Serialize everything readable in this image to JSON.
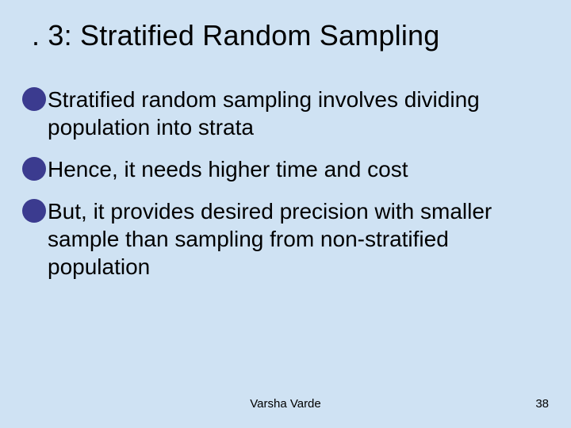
{
  "slide": {
    "title": ". 3: Stratified Random Sampling",
    "bullets": [
      "Stratified random sampling involves dividing population into strata",
      "Hence, it needs higher time and cost",
      "But, it provides desired precision with smaller sample than sampling from non-stratified population"
    ],
    "footer_author": "Varsha Varde",
    "footer_page": "38"
  },
  "style": {
    "background_color": "#cfe2f3",
    "bullet_color": "#3b3b8f",
    "text_color": "#000000",
    "title_fontsize": 36,
    "body_fontsize": 28,
    "footer_fontsize": 15,
    "font_family": "Arial"
  }
}
